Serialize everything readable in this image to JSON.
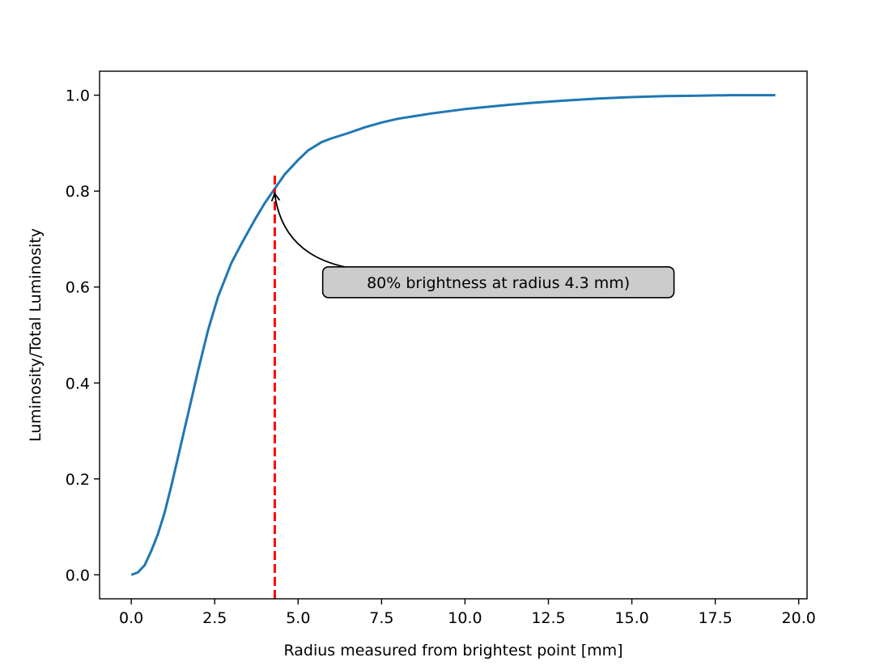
{
  "chart_data": {
    "type": "line",
    "title": "",
    "xlabel": "Radius measured from brightest point [mm]",
    "ylabel": "Luminosity/Total Luminosity",
    "xlim": [
      -0.95,
      20.25
    ],
    "ylim": [
      -0.05,
      1.05
    ],
    "xticks": [
      0.0,
      2.5,
      5.0,
      7.5,
      10.0,
      12.5,
      15.0,
      17.5,
      20.0
    ],
    "xtick_labels": [
      "0.0",
      "2.5",
      "5.0",
      "7.5",
      "10.0",
      "12.5",
      "15.0",
      "17.5",
      "20.0"
    ],
    "yticks": [
      0.0,
      0.2,
      0.4,
      0.6,
      0.8,
      1.0
    ],
    "ytick_labels": [
      "0.0",
      "0.2",
      "0.4",
      "0.6",
      "0.8",
      "1.0"
    ],
    "grid": false,
    "series": [
      {
        "color": "#1f77b4",
        "x": [
          0.0,
          0.2,
          0.4,
          0.6,
          0.8,
          1.0,
          1.2,
          1.4,
          1.6,
          1.8,
          2.0,
          2.3,
          2.6,
          3.0,
          3.3,
          3.7,
          4.0,
          4.3,
          4.6,
          5.0,
          5.3,
          5.7,
          6.0,
          6.5,
          7.0,
          7.5,
          8.0,
          9.0,
          10.0,
          11.0,
          12.0,
          13.0,
          14.0,
          15.0,
          16.0,
          17.0,
          18.0,
          19.3
        ],
        "y": [
          0.0,
          0.005,
          0.02,
          0.05,
          0.085,
          0.13,
          0.185,
          0.245,
          0.305,
          0.365,
          0.425,
          0.51,
          0.58,
          0.65,
          0.69,
          0.74,
          0.775,
          0.805,
          0.835,
          0.865,
          0.885,
          0.902,
          0.91,
          0.921,
          0.933,
          0.943,
          0.951,
          0.962,
          0.971,
          0.978,
          0.984,
          0.989,
          0.993,
          0.996,
          0.998,
          0.999,
          1.0,
          1.0
        ]
      }
    ],
    "vline": {
      "x": 4.3,
      "ymin": -0.05,
      "ymax": 0.84,
      "color": "#ff0000",
      "style": "dashed"
    },
    "annotation": {
      "text": "80% brightness at radius 4.3 mm)",
      "xy": [
        4.3,
        0.8
      ],
      "xytext": [
        11.0,
        0.61
      ],
      "box_color": "#cccccc"
    }
  }
}
